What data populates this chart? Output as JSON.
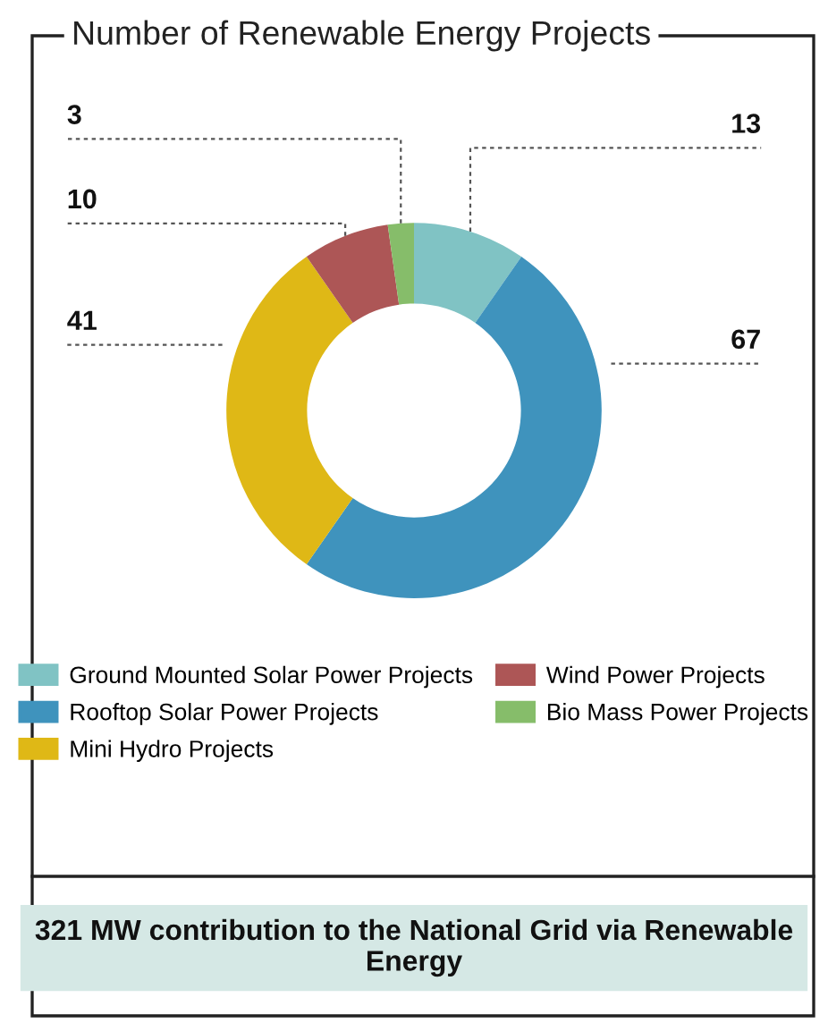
{
  "chart_data": {
    "type": "donut",
    "title": "Number of Renewable Energy Projects",
    "categories": [
      "Ground Mounted Solar Power Projects",
      "Rooftop Solar Power Projects",
      "Mini Hydro Projects",
      "Wind Power Projects",
      "Bio Mass Power Projects"
    ],
    "values": [
      13,
      67,
      41,
      10,
      3
    ],
    "colors": [
      "#80c3c4",
      "#3f93bd",
      "#dfb816",
      "#ad5656",
      "#86bd6a"
    ],
    "data_labels": true,
    "legend": "bottom",
    "annotations": [
      "321 MW contribution to the National Grid via Renewable Energy"
    ]
  }
}
